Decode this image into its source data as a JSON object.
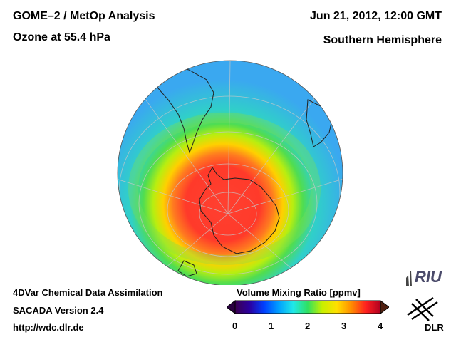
{
  "header": {
    "title_line1": "GOME–2 / MetOp Analysis",
    "title_line2": "Ozone at 55.4 hPa",
    "date": "Jun 21, 2012, 12:00 GMT",
    "region": "Southern Hemisphere"
  },
  "footer": {
    "line1": "4DVar Chemical Data Assimilation",
    "line2": "SACADA Version 2.4",
    "url": "http://wdc.dlr.de"
  },
  "colorbar": {
    "title": "Volume Mixing Ratio [ppmv]",
    "min": 0,
    "max": 4,
    "ticks": [
      "0",
      "1",
      "2",
      "3",
      "4"
    ],
    "stops": [
      "#3b0050",
      "#2a00a0",
      "#0040ff",
      "#00a0ff",
      "#20e8e8",
      "#30e060",
      "#c8f000",
      "#ffe000",
      "#ff8c00",
      "#ff2020",
      "#b00020"
    ]
  },
  "logos": {
    "riu": "RIU",
    "dlr": "DLR"
  }
}
